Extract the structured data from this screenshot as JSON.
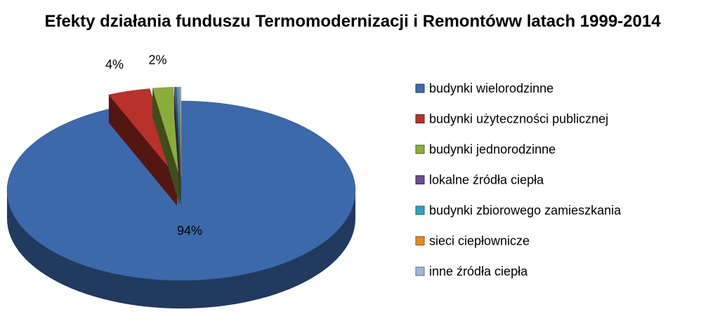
{
  "chart_data": {
    "type": "pie3d",
    "title": "Efekty działania funduszu Termomodernizacji i Remontóww latach 1999-2014",
    "categories": [
      "budynki wielorodzinne",
      "budynki użyteczności publicznej",
      "budynki jednorodzinne",
      "lokalne źródła ciepła",
      "budynki zbiorowego zamieszkania",
      "sieci ciepłownicze",
      "inne źródła ciepła"
    ],
    "values": [
      93.6,
      3.9,
      1.9,
      0.2,
      0.2,
      0.1,
      0.1
    ],
    "value_labels": [
      "94%",
      "4%",
      "2%",
      null,
      null,
      null,
      null
    ],
    "colors": [
      "#3c69ab",
      "#b8312b",
      "#8aad3a",
      "#6b4c98",
      "#34a0bf",
      "#e8891f",
      "#9fb6d8"
    ],
    "legend": "right"
  }
}
